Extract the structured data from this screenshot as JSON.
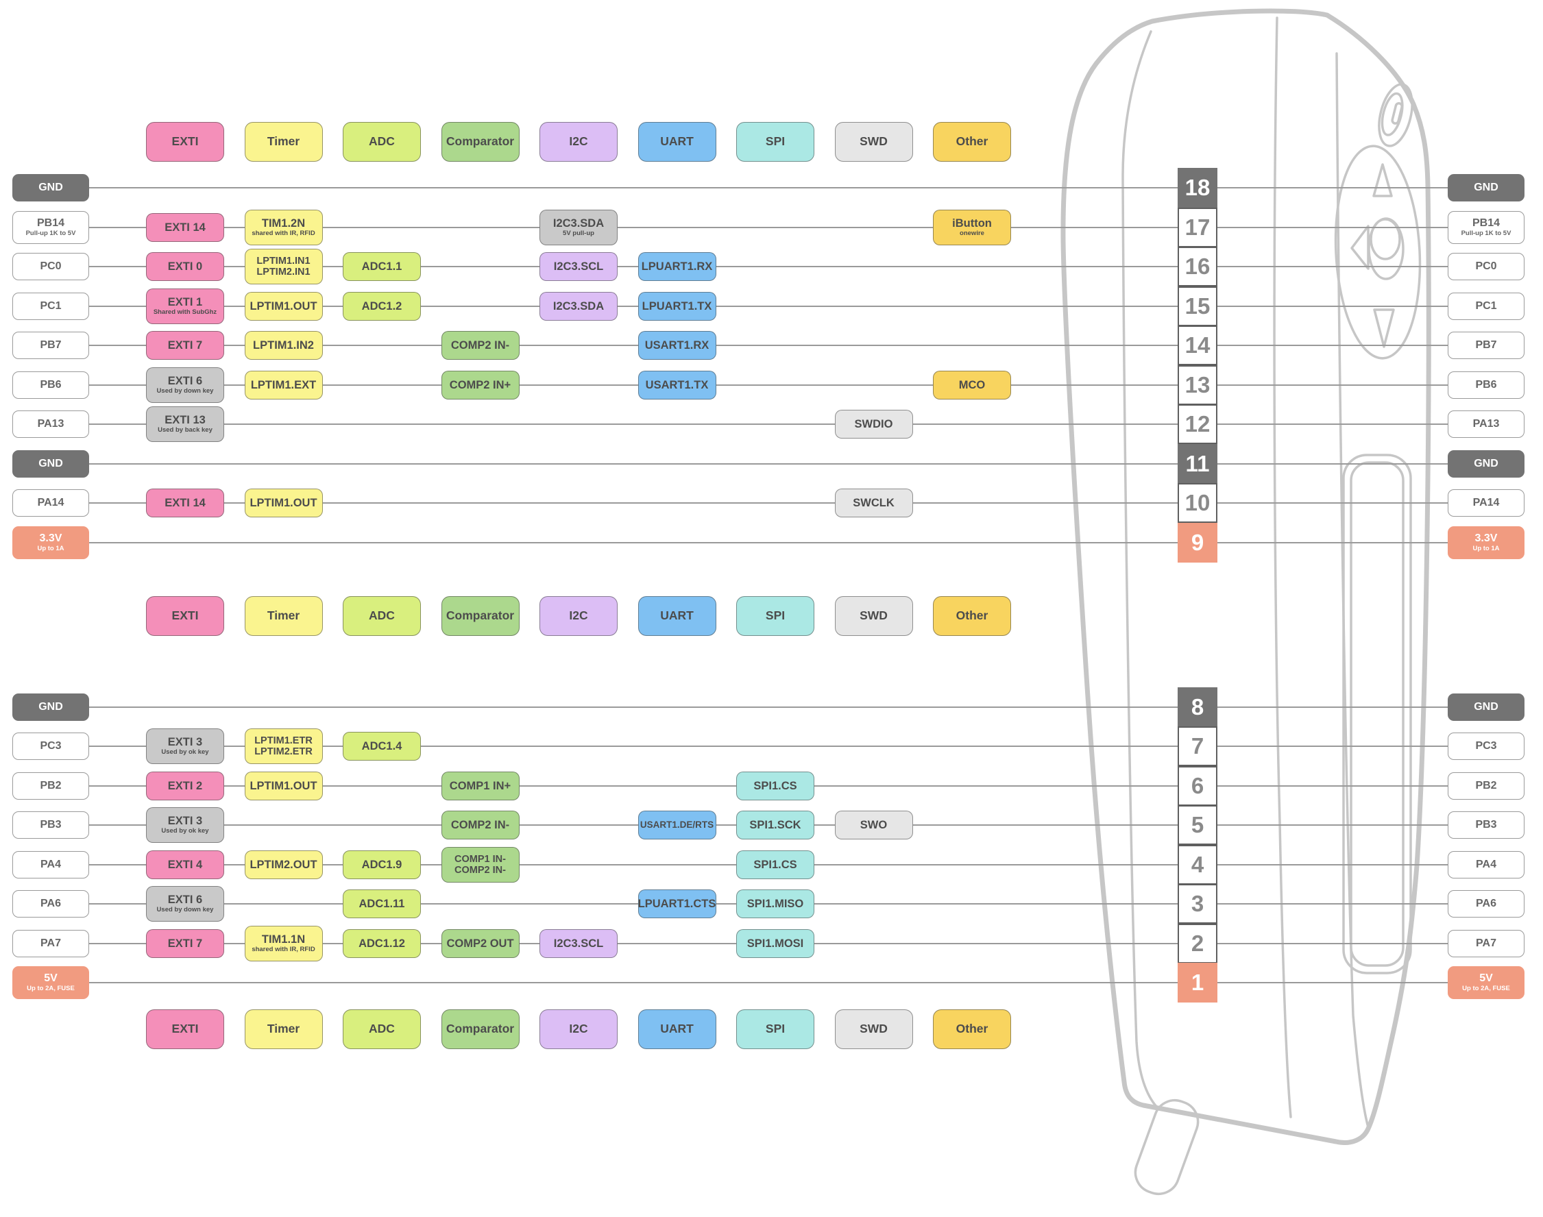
{
  "colors": {
    "exti": "#F48FB9",
    "timer": "#FAF48F",
    "adc": "#D9EF7E",
    "comp": "#ACD88D",
    "i2c": "#DCBEF5",
    "uart": "#7FC0F2",
    "spi": "#ABE8E4",
    "swd": "#E6E6E6",
    "other": "#F8D45F",
    "disabled": "#C9C9C9",
    "gnd": "#737373",
    "power": "#F19B80",
    "line": "#9a9a9a",
    "device_outline": "#c6c6c6"
  },
  "legend": {
    "items": [
      {
        "label": "EXTI",
        "color": "exti"
      },
      {
        "label": "Timer",
        "color": "timer"
      },
      {
        "label": "ADC",
        "color": "adc"
      },
      {
        "label": "Comparator",
        "color": "comp"
      },
      {
        "label": "I2C",
        "color": "i2c"
      },
      {
        "label": "UART",
        "color": "uart"
      },
      {
        "label": "SPI",
        "color": "spi"
      },
      {
        "label": "SWD",
        "color": "swd"
      },
      {
        "label": "Other",
        "color": "other"
      }
    ]
  },
  "sections": [
    {
      "pins": [
        {
          "num": "18",
          "style": "gnd",
          "label": "GND",
          "badges": []
        },
        {
          "num": "17",
          "style": "white",
          "label": "PB14",
          "sub": "Pull-up 1K to 5V",
          "badges": [
            {
              "col": "exti",
              "text": "EXTI 14",
              "color": "exti"
            },
            {
              "col": "timer",
              "text": "TIM1.2N",
              "sub": "shared with IR, RFID",
              "color": "timer"
            },
            {
              "col": "i2c",
              "text": "I2C3.SDA",
              "sub": "5V pull-up",
              "color": "disabled"
            },
            {
              "col": "other",
              "text": "iButton",
              "sub": "onewire",
              "color": "other"
            }
          ]
        },
        {
          "num": "16",
          "style": "white",
          "label": "PC0",
          "badges": [
            {
              "col": "exti",
              "text": "EXTI 0",
              "color": "exti"
            },
            {
              "col": "timer",
              "lines": [
                "LPTIM1.IN1",
                "LPTIM2.IN1"
              ],
              "color": "timer"
            },
            {
              "col": "adc",
              "text": "ADC1.1",
              "color": "adc"
            },
            {
              "col": "i2c",
              "text": "I2C3.SCL",
              "color": "i2c"
            },
            {
              "col": "uart",
              "text": "LPUART1.RX",
              "color": "uart"
            }
          ]
        },
        {
          "num": "15",
          "style": "white",
          "label": "PC1",
          "badges": [
            {
              "col": "exti",
              "text": "EXTI 1",
              "sub": "Shared with SubGhz",
              "color": "exti"
            },
            {
              "col": "timer",
              "text": "LPTIM1.OUT",
              "color": "timer"
            },
            {
              "col": "adc",
              "text": "ADC1.2",
              "color": "adc"
            },
            {
              "col": "i2c",
              "text": "I2C3.SDA",
              "color": "i2c"
            },
            {
              "col": "uart",
              "text": "LPUART1.TX",
              "color": "uart"
            }
          ]
        },
        {
          "num": "14",
          "style": "white",
          "label": "PB7",
          "badges": [
            {
              "col": "exti",
              "text": "EXTI 7",
              "color": "exti"
            },
            {
              "col": "timer",
              "text": "LPTIM1.IN2",
              "color": "timer"
            },
            {
              "col": "comp",
              "text": "COMP2 IN-",
              "color": "comp"
            },
            {
              "col": "uart",
              "text": "USART1.RX",
              "color": "uart"
            }
          ]
        },
        {
          "num": "13",
          "style": "white",
          "label": "PB6",
          "badges": [
            {
              "col": "exti",
              "text": "EXTI 6",
              "sub": "Used by down key",
              "color": "disabled"
            },
            {
              "col": "timer",
              "text": "LPTIM1.EXT",
              "color": "timer"
            },
            {
              "col": "comp",
              "text": "COMP2 IN+",
              "color": "comp"
            },
            {
              "col": "uart",
              "text": "USART1.TX",
              "color": "uart"
            },
            {
              "col": "other",
              "text": "MCO",
              "color": "other"
            }
          ]
        },
        {
          "num": "12",
          "style": "white",
          "label": "PA13",
          "badges": [
            {
              "col": "exti",
              "text": "EXTI 13",
              "sub": "Used by back key",
              "color": "disabled"
            },
            {
              "col": "swd",
              "text": "SWDIO",
              "color": "swd"
            }
          ]
        },
        {
          "num": "11",
          "style": "gnd",
          "label": "GND",
          "badges": []
        },
        {
          "num": "10",
          "style": "white",
          "label": "PA14",
          "badges": [
            {
              "col": "exti",
              "text": "EXTI 14",
              "color": "exti"
            },
            {
              "col": "timer",
              "text": "LPTIM1.OUT",
              "color": "timer"
            },
            {
              "col": "swd",
              "text": "SWCLK",
              "color": "swd"
            }
          ]
        },
        {
          "num": "9",
          "style": "power",
          "label": "3.3V",
          "sub": "Up to 1A",
          "badges": []
        }
      ]
    },
    {
      "pins": [
        {
          "num": "8",
          "style": "gnd",
          "label": "GND",
          "badges": []
        },
        {
          "num": "7",
          "style": "white",
          "label": "PC3",
          "badges": [
            {
              "col": "exti",
              "text": "EXTI 3",
              "sub": "Used by ok key",
              "color": "disabled"
            },
            {
              "col": "timer",
              "lines": [
                "LPTIM1.ETR",
                "LPTIM2.ETR"
              ],
              "color": "timer"
            },
            {
              "col": "adc",
              "text": "ADC1.4",
              "color": "adc"
            }
          ]
        },
        {
          "num": "6",
          "style": "white",
          "label": "PB2",
          "badges": [
            {
              "col": "exti",
              "text": "EXTI 2",
              "color": "exti"
            },
            {
              "col": "timer",
              "text": "LPTIM1.OUT",
              "color": "timer"
            },
            {
              "col": "comp",
              "text": "COMP1 IN+",
              "color": "comp"
            },
            {
              "col": "spi",
              "text": "SPI1.CS",
              "color": "spi"
            }
          ]
        },
        {
          "num": "5",
          "style": "white",
          "label": "PB3",
          "badges": [
            {
              "col": "exti",
              "text": "EXTI 3",
              "sub": "Used by ok key",
              "color": "disabled"
            },
            {
              "col": "comp",
              "text": "COMP2 IN-",
              "color": "comp"
            },
            {
              "col": "uart",
              "text": "USART1.DE/RTS",
              "color": "uart"
            },
            {
              "col": "spi",
              "text": "SPI1.SCK",
              "color": "spi"
            },
            {
              "col": "swd",
              "text": "SWO",
              "color": "swd"
            }
          ]
        },
        {
          "num": "4",
          "style": "white",
          "label": "PA4",
          "badges": [
            {
              "col": "exti",
              "text": "EXTI 4",
              "color": "exti"
            },
            {
              "col": "timer",
              "text": "LPTIM2.OUT",
              "color": "timer"
            },
            {
              "col": "adc",
              "text": "ADC1.9",
              "color": "adc"
            },
            {
              "col": "comp",
              "lines": [
                "COMP1 IN-",
                "COMP2 IN-"
              ],
              "color": "comp"
            },
            {
              "col": "spi",
              "text": "SPI1.CS",
              "color": "spi"
            }
          ]
        },
        {
          "num": "3",
          "style": "white",
          "label": "PA6",
          "badges": [
            {
              "col": "exti",
              "text": "EXTI 6",
              "sub": "Used by down key",
              "color": "disabled"
            },
            {
              "col": "adc",
              "text": "ADC1.11",
              "color": "adc"
            },
            {
              "col": "uart",
              "text": "LPUART1.CTS",
              "color": "uart"
            },
            {
              "col": "spi",
              "text": "SPI1.MISO",
              "color": "spi"
            }
          ]
        },
        {
          "num": "2",
          "style": "white",
          "label": "PA7",
          "badges": [
            {
              "col": "exti",
              "text": "EXTI 7",
              "color": "exti"
            },
            {
              "col": "timer",
              "text": "TIM1.1N",
              "sub": "shared with IR, RFID",
              "color": "timer"
            },
            {
              "col": "adc",
              "text": "ADC1.12",
              "color": "adc"
            },
            {
              "col": "comp",
              "text": "COMP2 OUT",
              "color": "comp"
            },
            {
              "col": "i2c",
              "text": "I2C3.SCL",
              "color": "i2c"
            },
            {
              "col": "spi",
              "text": "SPI1.MOSI",
              "color": "spi"
            }
          ]
        },
        {
          "num": "1",
          "style": "power",
          "label": "5V",
          "sub": "Up to 2A, FUSE",
          "badges": []
        }
      ]
    }
  ]
}
